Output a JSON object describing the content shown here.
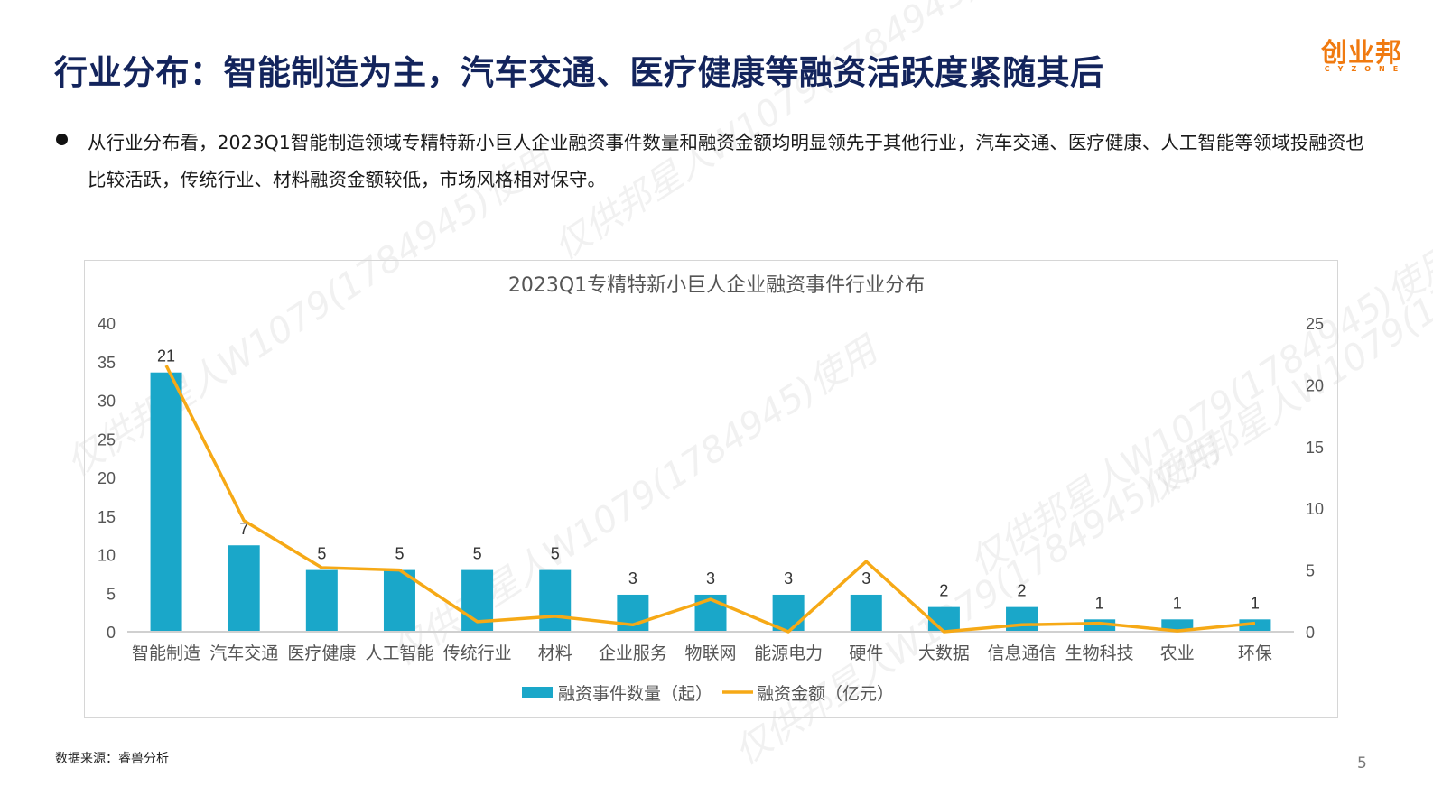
{
  "header": {
    "title": "行业分布：智能制造为主，汽车交通、医疗健康等融资活跃度紧随其后",
    "logo_text": "创业邦",
    "logo_subtext": "CYZONE"
  },
  "body": {
    "bullet_text": "从行业分布看，2023Q1智能制造领域专精特新小巨人企业融资事件数量和融资金额均明显领先于其他行业，汽车交通、医疗健康、人工智能等领域投融资也比较活跃，传统行业、材料融资金额较低，市场风格相对保守。"
  },
  "footer": {
    "source": "数据来源：睿兽分析",
    "page_number": "5"
  },
  "watermark": "仅供邦星人W1079(1784945)使用",
  "colors": {
    "bar": "#1aa7c9",
    "line": "#f6a916",
    "title": "#13245c",
    "brand": "#f07a10"
  },
  "chart_data": {
    "type": "bar+line",
    "title": "2023Q1专精特新小巨人企业融资事件行业分布",
    "categories": [
      "智能制造",
      "汽车交通",
      "医疗健康",
      "人工智能",
      "传统行业",
      "材料",
      "企业服务",
      "物联网",
      "能源电力",
      "硬件",
      "大数据",
      "信息通信",
      "生物科技",
      "农业",
      "环保"
    ],
    "series": [
      {
        "name": "融资事件数量（起）",
        "type": "bar",
        "axis": "right",
        "values": [
          21,
          7,
          5,
          5,
          5,
          5,
          3,
          3,
          3,
          3,
          2,
          2,
          1,
          1,
          1
        ],
        "data_labels": true
      },
      {
        "name": "融资金额（亿元）",
        "type": "line",
        "axis": "left",
        "values": [
          34.5,
          14.4,
          8.3,
          8.0,
          1.3,
          2.0,
          0.9,
          4.2,
          0.0,
          9.1,
          0.0,
          0.9,
          1.1,
          0.1,
          1.1
        ],
        "data_labels": false
      }
    ],
    "left_axis": {
      "ylim": [
        0,
        40
      ],
      "ticks": [
        0,
        5,
        10,
        15,
        20,
        25,
        30,
        35,
        40
      ]
    },
    "right_axis": {
      "ylim": [
        0,
        25
      ],
      "ticks": [
        0,
        5,
        10,
        15,
        20,
        25
      ]
    },
    "grid": false,
    "legend_position": "bottom"
  }
}
